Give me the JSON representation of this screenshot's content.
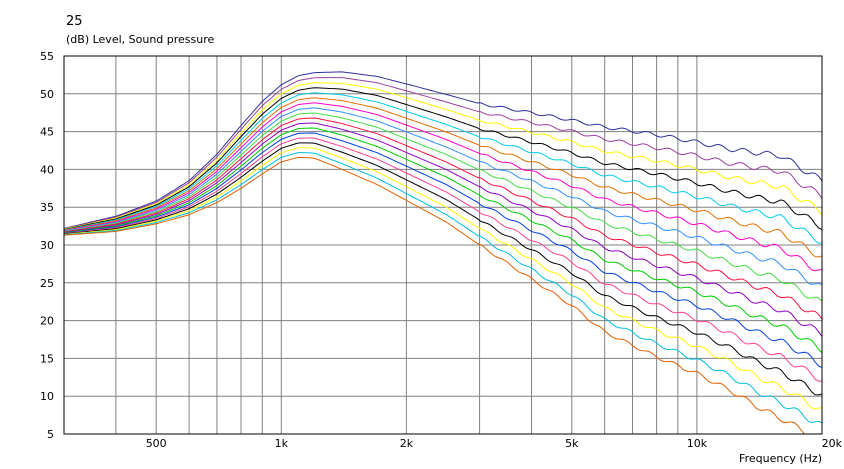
{
  "chart_data": {
    "type": "line",
    "title": "25",
    "ylabel": "(dB)  Level, Sound pressure",
    "xlabel": "Frequency  (Hz)",
    "x_scale": "log",
    "xlim": [
      300,
      20000
    ],
    "ylim": [
      5,
      55
    ],
    "grid": true,
    "y_ticks": [
      5,
      10,
      15,
      20,
      25,
      30,
      35,
      40,
      45,
      50,
      55
    ],
    "y_tick_labels": [
      "5",
      "10",
      "15",
      "20",
      "25",
      "30",
      "35",
      "40",
      "45",
      "50",
      "55"
    ],
    "x_tick_values": [
      500,
      1000,
      2000,
      5000,
      10000,
      20000
    ],
    "x_tick_labels": [
      "500",
      "1k",
      "2k",
      "5k",
      "10k",
      "20k"
    ],
    "x_minor_grid": [
      400,
      600,
      700,
      800,
      900,
      3000,
      4000,
      6000,
      7000,
      8000,
      9000
    ],
    "curve_profile": {
      "x": [
        300,
        400,
        500,
        600,
        700,
        800,
        900,
        1000,
        1100,
        1200,
        1400,
        1700,
        2000,
        2500,
        3000,
        4000,
        5000,
        6000,
        8000,
        10000,
        12000,
        14000,
        16000,
        18000,
        20000
      ],
      "top": [
        32.2,
        33.8,
        35.8,
        38.5,
        42.0,
        45.8,
        49.0,
        51.2,
        52.4,
        52.8,
        52.9,
        52.3,
        51.3,
        49.9,
        48.7,
        47.5,
        46.5,
        45.6,
        44.6,
        43.6,
        42.7,
        42.2,
        41.8,
        40.0,
        38.5
      ],
      "bottom": [
        31.3,
        31.8,
        32.8,
        34.0,
        35.6,
        37.5,
        39.4,
        41.0,
        41.6,
        41.5,
        40.0,
        38.0,
        35.9,
        33.0,
        30.0,
        25.5,
        22.0,
        18.5,
        15.2,
        13.0,
        10.8,
        8.6,
        7.0,
        5.5,
        4.0
      ]
    },
    "series": [
      {
        "color": "#30309a"
      },
      {
        "color": "#9c40a0"
      },
      {
        "color": "#ffff00"
      },
      {
        "color": "#000000"
      },
      {
        "color": "#00ccee"
      },
      {
        "color": "#e07000"
      },
      {
        "color": "#ff00cc"
      },
      {
        "color": "#3090ff"
      },
      {
        "color": "#44dd44"
      },
      {
        "color": "#ff1040"
      },
      {
        "color": "#9000c0"
      },
      {
        "color": "#00cc00"
      },
      {
        "color": "#0040e0"
      },
      {
        "color": "#ff4090"
      },
      {
        "color": "#000000"
      },
      {
        "color": "#ffff00"
      },
      {
        "color": "#00c0e0"
      },
      {
        "color": "#e06000"
      }
    ]
  }
}
